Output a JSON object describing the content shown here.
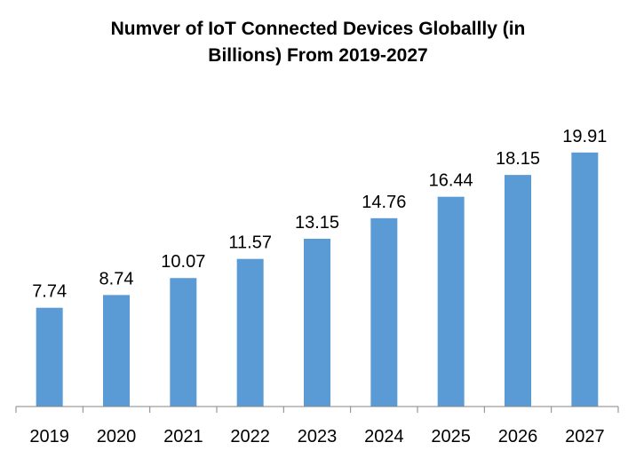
{
  "chart_data": {
    "type": "bar",
    "title_line1": "Numver of IoT Connected Devices Globallly (in",
    "title_line2": "Billions) From 2019-2027",
    "categories": [
      "2019",
      "2020",
      "2021",
      "2022",
      "2023",
      "2024",
      "2025",
      "2026",
      "2027"
    ],
    "values": [
      7.74,
      8.74,
      10.07,
      11.57,
      13.15,
      14.76,
      16.44,
      18.15,
      19.91
    ],
    "xlabel": "",
    "ylabel": "",
    "ylim": [
      0,
      24
    ],
    "grid": false,
    "bar_color": "#5B9BD5",
    "data_labels": true
  }
}
